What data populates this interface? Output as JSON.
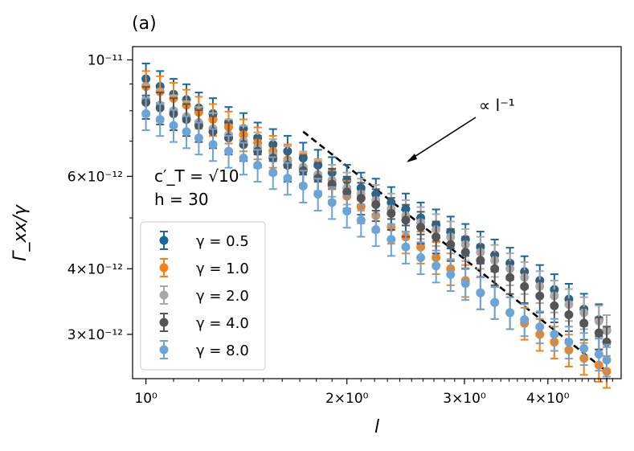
{
  "chart_data": {
    "type": "scatter",
    "panel_label": "(a)",
    "xlabel": "l",
    "ylabel": "Γ_xx/γ",
    "x_scale": "log",
    "y_scale": "log",
    "xlim": [
      0.955,
      5.15
    ],
    "ylim": [
      2.47e-12,
      1.06e-11
    ],
    "grid": false,
    "legend_placement": "lower-left",
    "x_ticks": [
      {
        "value": 1,
        "label": "10⁰"
      },
      {
        "value": 2,
        "label": "2×10⁰"
      },
      {
        "value": 3,
        "label": "3×10⁰"
      },
      {
        "value": 4,
        "label": "4×10⁰"
      }
    ],
    "y_ticks": [
      {
        "value": 1e-11,
        "label": "10⁻¹¹"
      },
      {
        "value": 6e-12,
        "label": "6×10⁻¹²"
      },
      {
        "value": 4e-12,
        "label": "4×10⁻¹²"
      },
      {
        "value": 3e-12,
        "label": "3×10⁻¹²"
      }
    ],
    "annotations": {
      "params_line1": "c′_T = √10",
      "params_line2": "h = 30",
      "slope_label": "∝ l⁻¹"
    },
    "reference_line": {
      "style": "dashed",
      "color": "#000000",
      "x": [
        1.72,
        4.9
      ],
      "y": [
        7.3e-12,
        2.55e-12
      ]
    },
    "series": [
      {
        "name": "γ = 0.5",
        "color": "#1668a0",
        "x": [
          1.0,
          1.05,
          1.1,
          1.15,
          1.2,
          1.26,
          1.33,
          1.4,
          1.47,
          1.55,
          1.63,
          1.72,
          1.81,
          1.9,
          2.0,
          2.1,
          2.21,
          2.33,
          2.45,
          2.58,
          2.72,
          2.86,
          3.01,
          3.17,
          3.33,
          3.51,
          3.69,
          3.89,
          4.09,
          4.3,
          4.53,
          4.77,
          4.9
        ],
        "y": [
          9.2e-12,
          8.9e-12,
          8.6e-12,
          8.4e-12,
          8.1e-12,
          7.9e-12,
          7.6e-12,
          7.4e-12,
          7.1e-12,
          6.9e-12,
          6.7e-12,
          6.5e-12,
          6.3e-12,
          6.1e-12,
          5.9e-12,
          5.7e-12,
          5.55e-12,
          5.35e-12,
          5.2e-12,
          5e-12,
          4.85e-12,
          4.7e-12,
          4.55e-12,
          4.4e-12,
          4.25e-12,
          4.1e-12,
          3.95e-12,
          3.8e-12,
          3.65e-12,
          3.5e-12,
          3.35e-12,
          3.2e-12,
          3.05e-12
        ],
        "err": [
          0.07,
          0.07,
          0.07,
          0.07,
          0.07,
          0.07,
          0.07,
          0.07,
          0.07,
          0.07,
          0.07,
          0.07,
          0.07,
          0.07,
          0.07,
          0.07,
          0.07,
          0.07,
          0.07,
          0.07,
          0.07,
          0.07,
          0.07,
          0.07,
          0.07,
          0.07,
          0.07,
          0.07,
          0.07,
          0.07,
          0.07,
          0.07,
          0.07
        ]
      },
      {
        "name": "γ = 1.0",
        "color": "#ff7f0e",
        "x": [
          1.0,
          1.05,
          1.1,
          1.15,
          1.2,
          1.26,
          1.33,
          1.4,
          1.47,
          1.55,
          1.63,
          1.72,
          1.81,
          1.9,
          2.0,
          2.1,
          2.21,
          2.33,
          2.45,
          2.58,
          2.72,
          2.86,
          3.01,
          3.17,
          3.33,
          3.51,
          3.69,
          3.89,
          4.09,
          4.3,
          4.53,
          4.77,
          4.9
        ],
        "y": [
          8.9e-12,
          8.7e-12,
          8.45e-12,
          8.2e-12,
          7.95e-12,
          7.7e-12,
          7.45e-12,
          7.2e-12,
          6.95e-12,
          6.7e-12,
          6.45e-12,
          6.2e-12,
          6e-12,
          5.75e-12,
          5.5e-12,
          5.25e-12,
          5.05e-12,
          4.8e-12,
          4.6e-12,
          4.4e-12,
          4.2e-12,
          4e-12,
          3.8e-12,
          3.6e-12,
          3.45e-12,
          3.3e-12,
          3.15e-12,
          3e-12,
          2.9e-12,
          2.8e-12,
          2.7e-12,
          2.62e-12,
          2.55e-12
        ],
        "err": [
          0.07,
          0.07,
          0.07,
          0.07,
          0.07,
          0.07,
          0.07,
          0.07,
          0.07,
          0.07,
          0.07,
          0.07,
          0.07,
          0.07,
          0.07,
          0.07,
          0.07,
          0.07,
          0.07,
          0.07,
          0.07,
          0.07,
          0.07,
          0.07,
          0.07,
          0.07,
          0.07,
          0.07,
          0.07,
          0.07,
          0.07,
          0.07,
          0.07
        ]
      },
      {
        "name": "γ = 2.0",
        "color": "#a8a8a8",
        "x": [
          1.0,
          1.05,
          1.1,
          1.15,
          1.2,
          1.26,
          1.33,
          1.4,
          1.47,
          1.55,
          1.63,
          1.72,
          1.81,
          1.9,
          2.0,
          2.1,
          2.21,
          2.33,
          2.45,
          2.58,
          2.72,
          2.86,
          3.01,
          3.17,
          3.33,
          3.51,
          3.69,
          3.89,
          4.09,
          4.3,
          4.53,
          4.77,
          4.9
        ],
        "y": [
          8.4e-12,
          8.2e-12,
          8e-12,
          7.8e-12,
          7.6e-12,
          7.4e-12,
          7.2e-12,
          7e-12,
          6.8e-12,
          6.6e-12,
          6.4e-12,
          6.25e-12,
          6.05e-12,
          5.9e-12,
          5.7e-12,
          5.55e-12,
          5.4e-12,
          5.2e-12,
          5.05e-12,
          4.9e-12,
          4.75e-12,
          4.6e-12,
          4.45e-12,
          4.3e-12,
          4.15e-12,
          4e-12,
          3.85e-12,
          3.7e-12,
          3.55e-12,
          3.42e-12,
          3.3e-12,
          3.18e-12,
          3.05e-12
        ],
        "err": [
          0.07,
          0.07,
          0.07,
          0.07,
          0.07,
          0.07,
          0.07,
          0.07,
          0.07,
          0.07,
          0.07,
          0.07,
          0.07,
          0.07,
          0.07,
          0.07,
          0.07,
          0.07,
          0.07,
          0.07,
          0.07,
          0.07,
          0.07,
          0.07,
          0.07,
          0.07,
          0.07,
          0.07,
          0.07,
          0.07,
          0.07,
          0.07,
          0.07
        ]
      },
      {
        "name": "γ = 4.0",
        "color": "#555555",
        "x": [
          1.0,
          1.05,
          1.1,
          1.15,
          1.2,
          1.26,
          1.33,
          1.4,
          1.47,
          1.55,
          1.63,
          1.72,
          1.81,
          1.9,
          2.0,
          2.1,
          2.21,
          2.33,
          2.45,
          2.58,
          2.72,
          2.86,
          3.01,
          3.17,
          3.33,
          3.51,
          3.69,
          3.89,
          4.09,
          4.3,
          4.53,
          4.77,
          4.9
        ],
        "y": [
          8.3e-12,
          8.1e-12,
          7.9e-12,
          7.7e-12,
          7.5e-12,
          7.3e-12,
          7.1e-12,
          6.9e-12,
          6.7e-12,
          6.5e-12,
          6.3e-12,
          6.15e-12,
          5.95e-12,
          5.8e-12,
          5.6e-12,
          5.45e-12,
          5.3e-12,
          5.1e-12,
          4.95e-12,
          4.8e-12,
          4.6e-12,
          4.45e-12,
          4.3e-12,
          4.15e-12,
          4e-12,
          3.85e-12,
          3.7e-12,
          3.55e-12,
          3.4e-12,
          3.27e-12,
          3.15e-12,
          3.02e-12,
          2.9e-12
        ],
        "err": [
          0.07,
          0.07,
          0.07,
          0.07,
          0.07,
          0.07,
          0.07,
          0.07,
          0.07,
          0.07,
          0.07,
          0.07,
          0.07,
          0.07,
          0.07,
          0.07,
          0.07,
          0.07,
          0.07,
          0.07,
          0.07,
          0.07,
          0.07,
          0.07,
          0.07,
          0.07,
          0.07,
          0.07,
          0.07,
          0.07,
          0.07,
          0.07,
          0.07
        ]
      },
      {
        "name": "γ = 8.0",
        "color": "#6aa4d8",
        "x": [
          1.0,
          1.05,
          1.1,
          1.15,
          1.2,
          1.26,
          1.33,
          1.4,
          1.47,
          1.55,
          1.63,
          1.72,
          1.81,
          1.9,
          2.0,
          2.1,
          2.21,
          2.33,
          2.45,
          2.58,
          2.72,
          2.86,
          3.01,
          3.17,
          3.33,
          3.51,
          3.69,
          3.89,
          4.09,
          4.3,
          4.53,
          4.77,
          4.9
        ],
        "y": [
          7.9e-12,
          7.7e-12,
          7.5e-12,
          7.3e-12,
          7.1e-12,
          6.9e-12,
          6.7e-12,
          6.5e-12,
          6.3e-12,
          6.1e-12,
          5.95e-12,
          5.75e-12,
          5.55e-12,
          5.35e-12,
          5.15e-12,
          4.95e-12,
          4.75e-12,
          4.55e-12,
          4.4e-12,
          4.2e-12,
          4.05e-12,
          3.9e-12,
          3.75e-12,
          3.6e-12,
          3.45e-12,
          3.3e-12,
          3.2e-12,
          3.1e-12,
          3e-12,
          2.9e-12,
          2.82e-12,
          2.75e-12,
          2.68e-12
        ],
        "err": [
          0.07,
          0.07,
          0.07,
          0.07,
          0.07,
          0.07,
          0.07,
          0.07,
          0.07,
          0.07,
          0.07,
          0.07,
          0.07,
          0.07,
          0.07,
          0.07,
          0.07,
          0.07,
          0.07,
          0.07,
          0.07,
          0.07,
          0.07,
          0.07,
          0.07,
          0.07,
          0.07,
          0.07,
          0.07,
          0.07,
          0.07,
          0.07,
          0.07
        ]
      }
    ]
  }
}
